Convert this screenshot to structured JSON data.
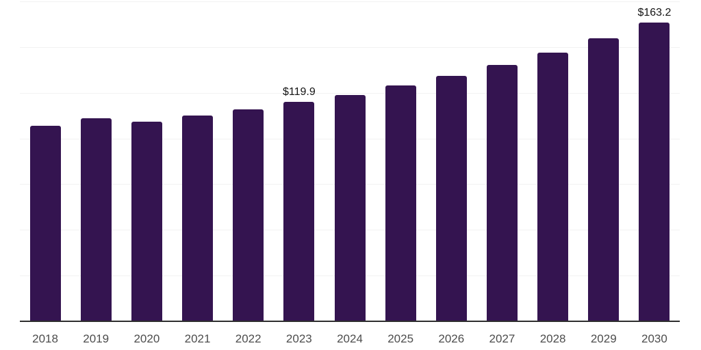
{
  "chart_data": {
    "type": "bar",
    "title": "",
    "xlabel": "",
    "ylabel": "",
    "categories": [
      "2018",
      "2019",
      "2020",
      "2021",
      "2022",
      "2023",
      "2024",
      "2025",
      "2026",
      "2027",
      "2028",
      "2029",
      "2030"
    ],
    "values": [
      107.0,
      110.9,
      109.3,
      112.4,
      115.8,
      119.9,
      123.8,
      128.9,
      134.3,
      140.3,
      147.1,
      154.6,
      163.2
    ],
    "annotations": [
      {
        "category": "2023",
        "text": "$119.9"
      },
      {
        "category": "2030",
        "text": "$163.2"
      }
    ],
    "ylim": [
      0,
      175
    ],
    "grid": true,
    "grid_step": 25,
    "legend": false,
    "colors": {
      "bar": "#341450",
      "gridline": "#f2f2f2",
      "axis_line": "#2e2e2e",
      "tick_label": "#4d4d4d",
      "value_label": "#141414",
      "background": "#ffffff"
    }
  }
}
